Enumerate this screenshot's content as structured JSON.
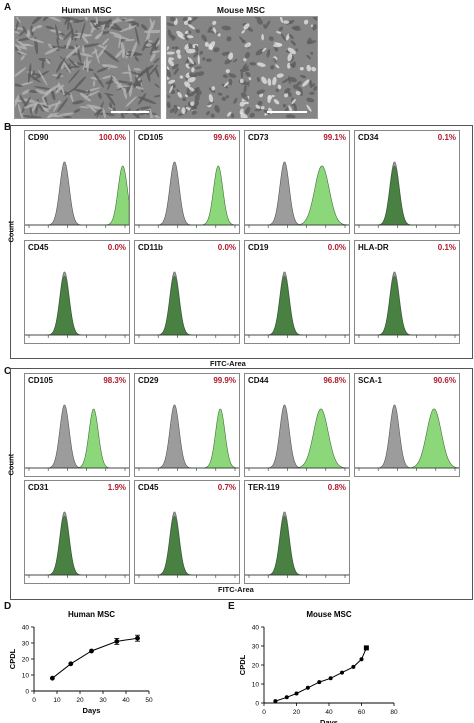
{
  "panel_labels": {
    "a": "A",
    "b": "B",
    "c": "C",
    "d": "D",
    "e": "E"
  },
  "panel_a": {
    "images": [
      {
        "title": "Human MSC"
      },
      {
        "title": "Mouse MSC"
      }
    ]
  },
  "panel_b": {
    "count_label": "Count",
    "x_label": "FITC-Area",
    "markers": [
      {
        "name": "CD90",
        "pct": "100.0%",
        "shift": 0.56,
        "bright": true
      },
      {
        "name": "CD105",
        "pct": "99.6%",
        "shift": 0.42,
        "bright": true
      },
      {
        "name": "CD73",
        "pct": "99.1%",
        "shift": 0.36,
        "bright": true
      },
      {
        "name": "CD34",
        "pct": "0.1%",
        "shift": 0.0,
        "bright": false
      },
      {
        "name": "CD45",
        "pct": "0.0%",
        "shift": 0.0,
        "bright": false
      },
      {
        "name": "CD11b",
        "pct": "0.0%",
        "shift": 0.0,
        "bright": false
      },
      {
        "name": "CD19",
        "pct": "0.0%",
        "shift": 0.0,
        "bright": false
      },
      {
        "name": "HLA-DR",
        "pct": "0.1%",
        "shift": 0.0,
        "bright": false
      }
    ]
  },
  "panel_c": {
    "count_label": "Count",
    "x_label": "FITC-Area",
    "markers": [
      {
        "name": "CD105",
        "pct": "98.3%",
        "shift": 0.28,
        "bright": true
      },
      {
        "name": "CD29",
        "pct": "99.9%",
        "shift": 0.44,
        "bright": true
      },
      {
        "name": "CD44",
        "pct": "96.8%",
        "shift": 0.35,
        "bright": true
      },
      {
        "name": "SCA-1",
        "pct": "90.6%",
        "shift": 0.38,
        "bright": true
      },
      {
        "name": "CD31",
        "pct": "1.9%",
        "shift": 0.0,
        "bright": false
      },
      {
        "name": "CD45",
        "pct": "0.7%",
        "shift": 0.0,
        "bright": false
      },
      {
        "name": "TER-119",
        "pct": "0.8%",
        "shift": 0.0,
        "bright": false
      }
    ]
  },
  "chart_data": [
    {
      "type": "line",
      "title": "Human MSC",
      "xlabel": "Days",
      "ylabel": "CPDL",
      "xlim": [
        0,
        50
      ],
      "ylim": [
        0,
        40
      ],
      "xticks": [
        "0",
        "10",
        "20",
        "30",
        "40",
        "50"
      ],
      "yticks": [
        "0",
        "10",
        "20",
        "30",
        "40"
      ],
      "x": [
        8,
        16,
        25,
        36,
        45
      ],
      "y": [
        8,
        17,
        25,
        31,
        33
      ]
    },
    {
      "type": "line",
      "title": "Mouse MSC",
      "xlabel": "Days",
      "ylabel": "CPDL",
      "xlim": [
        0,
        80
      ],
      "ylim": [
        0,
        40
      ],
      "xticks": [
        "0",
        "20",
        "40",
        "60",
        "80"
      ],
      "yticks": [
        "0",
        "10",
        "20",
        "30",
        "40"
      ],
      "x": [
        7,
        14,
        20,
        27,
        34,
        41,
        48,
        55,
        60,
        63
      ],
      "y": [
        1,
        3,
        5,
        8,
        11,
        13,
        16,
        19,
        23,
        29
      ]
    }
  ],
  "colors": {
    "positive": "#7fd36b",
    "negative": "#3a7d33",
    "control": "#9c9c9c",
    "pct": "#b0182a"
  }
}
